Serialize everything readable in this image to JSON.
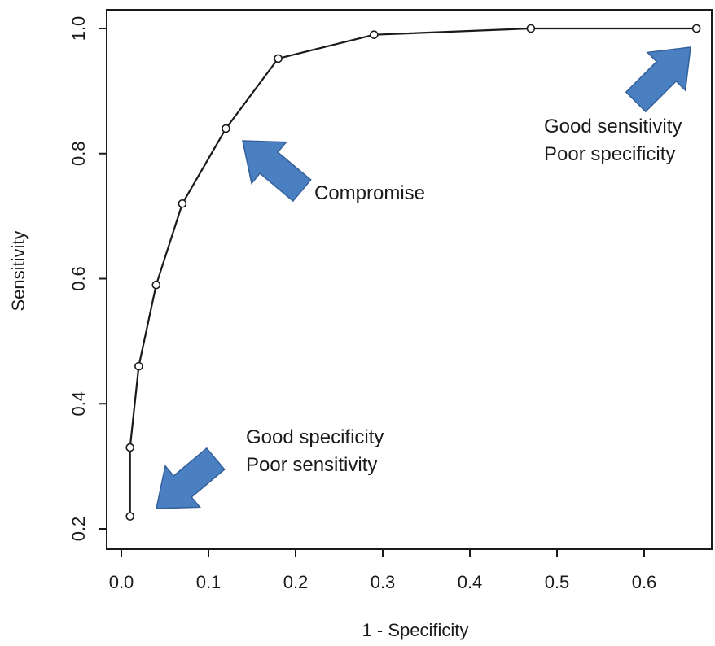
{
  "chart_data": {
    "type": "line",
    "title": "",
    "xlabel": "1 - Specificity",
    "ylabel": "Sensitivity",
    "xlim": [
      0.0,
      0.67
    ],
    "ylim": [
      0.2,
      1.0
    ],
    "xticks": [
      0.0,
      0.1,
      0.2,
      0.3,
      0.4,
      0.5,
      0.6
    ],
    "xtick_labels": [
      "0.0",
      "0.1",
      "0.2",
      "0.3",
      "0.4",
      "0.5",
      "0.6"
    ],
    "yticks": [
      0.2,
      0.4,
      0.6,
      0.8,
      1.0
    ],
    "ytick_labels": [
      "0.2",
      "0.4",
      "0.6",
      "0.8",
      "1.0"
    ],
    "grid": false,
    "legend": "none",
    "series": [
      {
        "x": [
          0.01,
          0.01,
          0.02,
          0.04,
          0.07,
          0.12,
          0.18,
          0.29,
          0.47,
          0.66
        ],
        "y": [
          0.22,
          0.33,
          0.46,
          0.59,
          0.72,
          0.84,
          0.952,
          0.99,
          1.0,
          1.0
        ],
        "color": "#1a1a1a",
        "marker": "open-circle"
      }
    ],
    "annotations": [
      {
        "lines": [
          "Good sensitivity",
          "Poor specificity"
        ],
        "point_x": 0.66,
        "point_y": 1.0,
        "arrow_color": "#4a7fc1"
      },
      {
        "lines": [
          "Compromise"
        ],
        "point_x": 0.12,
        "point_y": 0.84,
        "arrow_color": "#4a7fc1"
      },
      {
        "lines": [
          "Good specificity",
          "Poor sensitivity"
        ],
        "point_x": 0.01,
        "point_y": 0.22,
        "arrow_color": "#4a7fc1"
      }
    ]
  }
}
